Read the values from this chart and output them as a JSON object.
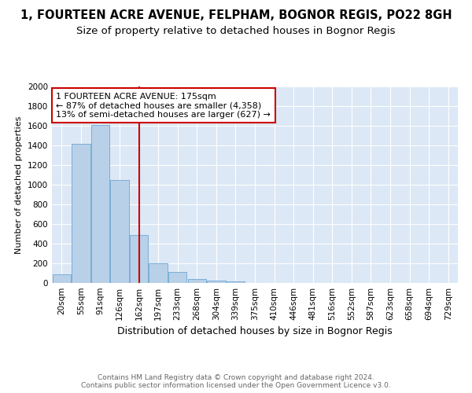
{
  "title": "1, FOURTEEN ACRE AVENUE, FELPHAM, BOGNOR REGIS, PO22 8GH",
  "subtitle": "Size of property relative to detached houses in Bognor Regis",
  "xlabel": "Distribution of detached houses by size in Bognor Regis",
  "ylabel": "Number of detached properties",
  "categories": [
    "20sqm",
    "55sqm",
    "91sqm",
    "126sqm",
    "162sqm",
    "197sqm",
    "233sqm",
    "268sqm",
    "304sqm",
    "339sqm",
    "375sqm",
    "410sqm",
    "446sqm",
    "481sqm",
    "516sqm",
    "552sqm",
    "587sqm",
    "623sqm",
    "658sqm",
    "694sqm",
    "729sqm"
  ],
  "values": [
    88,
    1420,
    1610,
    1050,
    490,
    200,
    110,
    40,
    25,
    20,
    0,
    0,
    0,
    0,
    0,
    0,
    0,
    0,
    0,
    0,
    0
  ],
  "bar_color": "#b8d0e8",
  "bar_edge_color": "#7aaed6",
  "vline_x": 4.0,
  "vline_color": "#cc0000",
  "annotation_text": "1 FOURTEEN ACRE AVENUE: 175sqm\n← 87% of detached houses are smaller (4,358)\n13% of semi-detached houses are larger (627) →",
  "annotation_box_color": "#ffffff",
  "annotation_box_edge": "#cc0000",
  "ylim": [
    0,
    2000
  ],
  "yticks": [
    0,
    200,
    400,
    600,
    800,
    1000,
    1200,
    1400,
    1600,
    1800,
    2000
  ],
  "footer_line1": "Contains HM Land Registry data © Crown copyright and database right 2024.",
  "footer_line2": "Contains public sector information licensed under the Open Government Licence v3.0.",
  "bg_color": "#dce8f5",
  "grid_color": "#ffffff",
  "title_fontsize": 10.5,
  "subtitle_fontsize": 9.5,
  "ylabel_fontsize": 8,
  "xlabel_fontsize": 9,
  "tick_fontsize": 7.5,
  "annot_fontsize": 8,
  "footer_fontsize": 6.5
}
